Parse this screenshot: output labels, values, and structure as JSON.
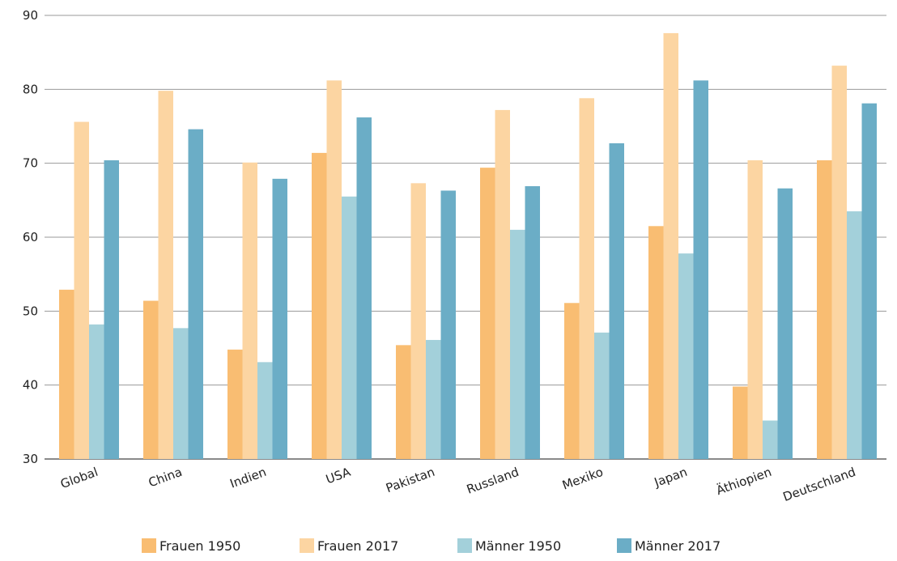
{
  "chart_data": {
    "type": "bar",
    "categories": [
      "Global",
      "China",
      "Indien",
      "USA",
      "Pakistan",
      "Russland",
      "Mexiko",
      "Japan",
      "Äthiopien",
      "Deutschland"
    ],
    "series": [
      {
        "name": "Frauen 1950",
        "color": "#f9bd72",
        "values": [
          52.9,
          51.4,
          44.8,
          71.4,
          45.4,
          69.4,
          51.1,
          61.5,
          39.8,
          70.4
        ]
      },
      {
        "name": "Frauen 2017",
        "color": "#fcd5a2",
        "values": [
          75.6,
          79.8,
          70.1,
          81.2,
          67.3,
          77.2,
          78.8,
          87.6,
          70.4,
          83.2
        ]
      },
      {
        "name": "Männer 1950",
        "color": "#a3d0da",
        "values": [
          48.2,
          47.7,
          43.1,
          65.5,
          46.1,
          61.0,
          47.1,
          57.8,
          35.2,
          63.5
        ]
      },
      {
        "name": "Männer 2017",
        "color": "#6badc6",
        "values": [
          70.4,
          74.6,
          67.9,
          76.2,
          66.3,
          66.9,
          72.7,
          81.2,
          66.6,
          78.1
        ]
      }
    ],
    "ylim": [
      30,
      90
    ],
    "yticks": [
      "30",
      "40",
      "50",
      "60",
      "70",
      "80",
      "90"
    ],
    "grid": true,
    "legend_position": "bottom"
  }
}
